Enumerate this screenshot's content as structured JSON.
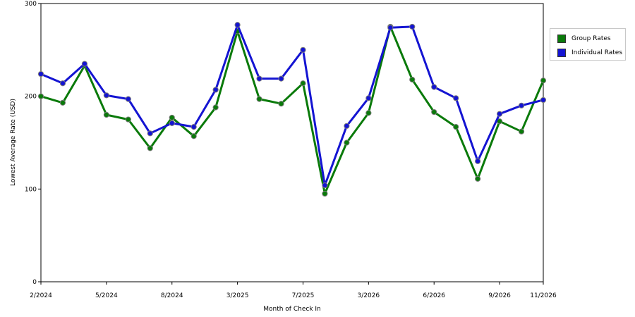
{
  "chart_data": {
    "type": "line",
    "xlabel": "Month of Check In",
    "ylabel": "Lowest Average Rate (USD)",
    "ylim": [
      0,
      300
    ],
    "y_ticks": [
      0,
      100,
      200,
      300
    ],
    "grid": "horizontal dashed",
    "legend_position": "right",
    "x_tick_labels": [
      {
        "index": 0,
        "label": "2/2024"
      },
      {
        "index": 3,
        "label": "5/2024"
      },
      {
        "index": 6,
        "label": "8/2024"
      },
      {
        "index": 9,
        "label": "3/2025"
      },
      {
        "index": 12,
        "label": "7/2025"
      },
      {
        "index": 15,
        "label": "3/2026"
      },
      {
        "index": 18,
        "label": "6/2026"
      },
      {
        "index": 21,
        "label": "9/2026"
      },
      {
        "index": 23,
        "label": "11/2026"
      }
    ],
    "series": [
      {
        "name": "Group Rates",
        "color": "#0a7a0a",
        "values": [
          200,
          193,
          233,
          180,
          175,
          144,
          177,
          157,
          188,
          270,
          197,
          192,
          214,
          95,
          150,
          182,
          275,
          218,
          183,
          167,
          111,
          173,
          162,
          217
        ]
      },
      {
        "name": "Individual Rates",
        "color": "#1414d2",
        "values": [
          224,
          214,
          235,
          201,
          197,
          160,
          171,
          167,
          207,
          277,
          219,
          219,
          250,
          104,
          168,
          198,
          274,
          275,
          210,
          198,
          130,
          181,
          190,
          196
        ]
      }
    ]
  }
}
